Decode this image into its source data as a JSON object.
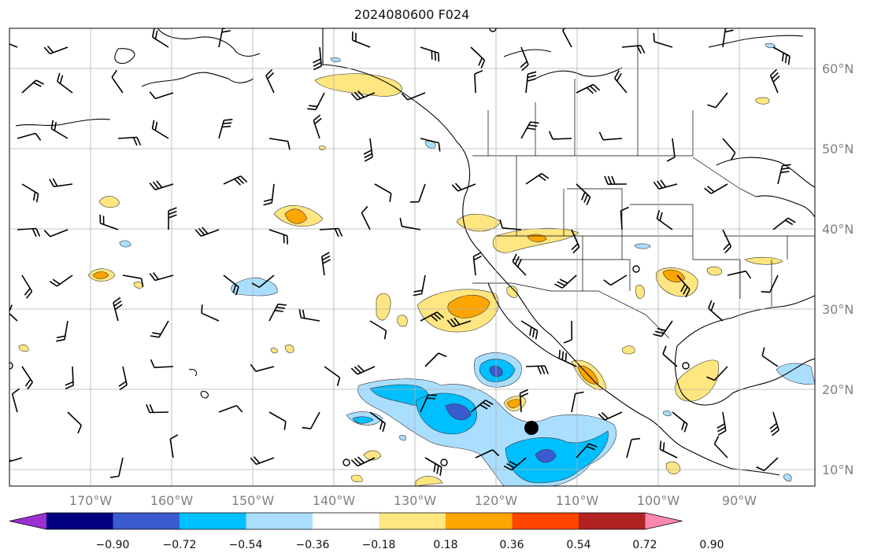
{
  "title": "2024080600 F024",
  "lat_labels": [
    "60°N",
    "50°N",
    "40°N",
    "30°N",
    "20°N",
    "10°N"
  ],
  "lon_labels": [
    "170°W",
    "160°W",
    "150°W",
    "140°W",
    "130°W",
    "120°W",
    "110°W",
    "100°W",
    "90°W"
  ],
  "colorbar": {
    "colors": [
      "#9b30d0",
      "#000080",
      "#3a5bd0",
      "#00bfff",
      "#aadeff",
      "#ffffff",
      "#ffe680",
      "#ffa500",
      "#ff4500",
      "#b22222",
      "#ff88b0"
    ],
    "tick_labels": [
      "−0.90",
      "−0.72",
      "−0.54",
      "−0.36",
      "−0.18",
      "0.18",
      "0.36",
      "0.54",
      "0.72",
      "0.90"
    ]
  }
}
